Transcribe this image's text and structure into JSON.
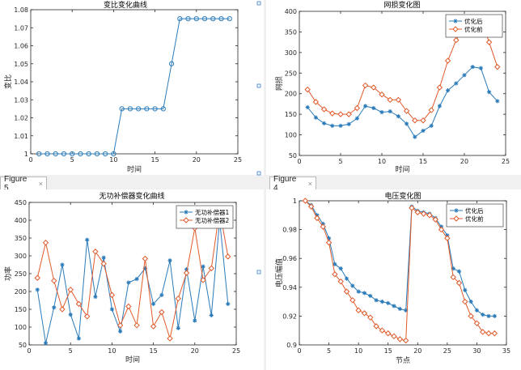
{
  "tabs": [
    {
      "label": "Figure 5",
      "close": "×"
    },
    {
      "label": "Figure 4",
      "close": "×"
    }
  ],
  "chart_data": [
    {
      "type": "line",
      "title": "变比变化曲线",
      "xlabel": "时间",
      "ylabel": "变比",
      "xlim": [
        0,
        25
      ],
      "ylim": [
        1,
        1.08
      ],
      "xticks": [
        0,
        5,
        10,
        15,
        20,
        25
      ],
      "yticks": [
        1,
        1.01,
        1.02,
        1.03,
        1.04,
        1.05,
        1.06,
        1.07,
        1.08
      ],
      "xticklabels": [
        "0",
        "5",
        "10",
        "15",
        "20",
        "25"
      ],
      "yticklabels": [
        "1",
        "1.01",
        "1.02",
        "1.03",
        "1.04",
        "1.05",
        "1.06",
        "1.07",
        "1.08"
      ],
      "x": [
        1,
        2,
        3,
        4,
        5,
        6,
        7,
        8,
        9,
        10,
        11,
        12,
        13,
        14,
        15,
        16,
        17,
        18,
        19,
        20,
        21,
        22,
        23,
        24
      ],
      "series": [
        {
          "name": "变比",
          "color": "#2b7bb9",
          "marker": "circle",
          "values": [
            1,
            1,
            1,
            1,
            1,
            1,
            1,
            1,
            1,
            1,
            1.025,
            1.025,
            1.025,
            1.025,
            1.025,
            1.025,
            1.05,
            1.075,
            1.075,
            1.075,
            1.075,
            1.075,
            1.075,
            1.075
          ]
        }
      ],
      "legend": null
    },
    {
      "type": "line",
      "title": "网损变化图",
      "xlabel": "时间",
      "ylabel": "网损",
      "xlim": [
        0,
        25
      ],
      "ylim": [
        50,
        400
      ],
      "xticks": [
        0,
        5,
        10,
        15,
        20,
        25
      ],
      "yticks": [
        50,
        100,
        150,
        200,
        250,
        300,
        350,
        400
      ],
      "xticklabels": [
        "0",
        "5",
        "10",
        "15",
        "20",
        "25"
      ],
      "yticklabels": [
        "50",
        "100",
        "150",
        "200",
        "250",
        "300",
        "350",
        "400"
      ],
      "x": [
        1,
        2,
        3,
        4,
        5,
        6,
        7,
        8,
        9,
        10,
        11,
        12,
        13,
        14,
        15,
        16,
        17,
        18,
        19,
        20,
        21,
        22,
        23,
        24
      ],
      "series": [
        {
          "name": "优化后",
          "color": "#2b7bb9",
          "marker": "star",
          "values": [
            167,
            142,
            128,
            122,
            122,
            126,
            140,
            170,
            165,
            155,
            157,
            145,
            127,
            95,
            110,
            122,
            170,
            208,
            225,
            245,
            265,
            262,
            204,
            182
          ]
        },
        {
          "name": "优化前",
          "color": "#e05a2b",
          "marker": "diamond",
          "values": [
            210,
            180,
            162,
            152,
            150,
            150,
            165,
            220,
            215,
            198,
            185,
            185,
            158,
            135,
            135,
            160,
            215,
            280,
            330,
            365,
            360,
            380,
            325,
            265
          ]
        }
      ],
      "legend": "top-right"
    },
    {
      "type": "line",
      "title": "无功补偿器变化曲线",
      "xlabel": "时间",
      "ylabel": "功率",
      "xlim": [
        0,
        25
      ],
      "ylim": [
        50,
        450
      ],
      "xticks": [
        0,
        5,
        10,
        15,
        20,
        25
      ],
      "yticks": [
        50,
        100,
        150,
        200,
        250,
        300,
        350,
        400,
        450
      ],
      "xticklabels": [
        "0",
        "5",
        "10",
        "15",
        "20",
        "25"
      ],
      "yticklabels": [
        "50",
        "100",
        "150",
        "200",
        "250",
        "300",
        "350",
        "400",
        "450"
      ],
      "x": [
        1,
        2,
        3,
        4,
        5,
        6,
        7,
        8,
        9,
        10,
        11,
        12,
        13,
        14,
        15,
        16,
        17,
        18,
        19,
        20,
        21,
        22,
        23,
        24
      ],
      "series": [
        {
          "name": "无功补偿器1",
          "color": "#2b7bb9",
          "marker": "star",
          "values": [
            205,
            55,
            155,
            275,
            135,
            68,
            345,
            185,
            295,
            150,
            88,
            225,
            235,
            265,
            165,
            190,
            287,
            97,
            262,
            118,
            270,
            133,
            400,
            165
          ]
        },
        {
          "name": "无功补偿器2",
          "color": "#e05a2b",
          "marker": "diamond",
          "values": [
            238,
            337,
            230,
            150,
            205,
            165,
            130,
            312,
            278,
            190,
            105,
            158,
            105,
            292,
            102,
            142,
            68,
            180,
            252,
            378,
            232,
            265,
            430,
            298
          ]
        }
      ],
      "legend": "top-right"
    },
    {
      "type": "line",
      "title": "电压变化图",
      "xlabel": "节点",
      "ylabel": "电压幅值",
      "xlim": [
        0,
        35
      ],
      "ylim": [
        0.9,
        1.0
      ],
      "xticks": [
        0,
        5,
        10,
        15,
        20,
        25,
        30,
        35
      ],
      "yticks": [
        0.9,
        0.92,
        0.94,
        0.96,
        0.98,
        1.0
      ],
      "xticklabels": [
        "0",
        "5",
        "10",
        "15",
        "20",
        "25",
        "30",
        "35"
      ],
      "yticklabels": [
        "0.9",
        "0.92",
        "0.94",
        "0.96",
        "0.98",
        "1"
      ],
      "x": [
        1,
        2,
        3,
        4,
        5,
        6,
        7,
        8,
        9,
        10,
        11,
        12,
        13,
        14,
        15,
        16,
        17,
        18,
        19,
        20,
        21,
        22,
        23,
        24,
        25,
        26,
        27,
        28,
        29,
        30,
        31,
        32,
        33
      ],
      "series": [
        {
          "name": "优化后",
          "color": "#2b7bb9",
          "marker": "star",
          "values": [
            1.0,
            0.997,
            0.99,
            0.984,
            0.974,
            0.956,
            0.953,
            0.946,
            0.941,
            0.937,
            0.936,
            0.934,
            0.931,
            0.93,
            0.929,
            0.927,
            0.925,
            0.924,
            0.996,
            0.993,
            0.992,
            0.991,
            0.988,
            0.982,
            0.976,
            0.953,
            0.951,
            0.938,
            0.93,
            0.924,
            0.921,
            0.92,
            0.92
          ]
        },
        {
          "name": "优化前",
          "color": "#e05a2b",
          "marker": "diamond",
          "values": [
            1.0,
            0.996,
            0.988,
            0.982,
            0.971,
            0.949,
            0.944,
            0.937,
            0.931,
            0.924,
            0.922,
            0.919,
            0.913,
            0.91,
            0.908,
            0.906,
            0.904,
            0.903,
            0.995,
            0.992,
            0.991,
            0.99,
            0.987,
            0.98,
            0.974,
            0.947,
            0.943,
            0.93,
            0.92,
            0.915,
            0.909,
            0.908,
            0.908
          ]
        }
      ],
      "legend": "top-right"
    }
  ]
}
